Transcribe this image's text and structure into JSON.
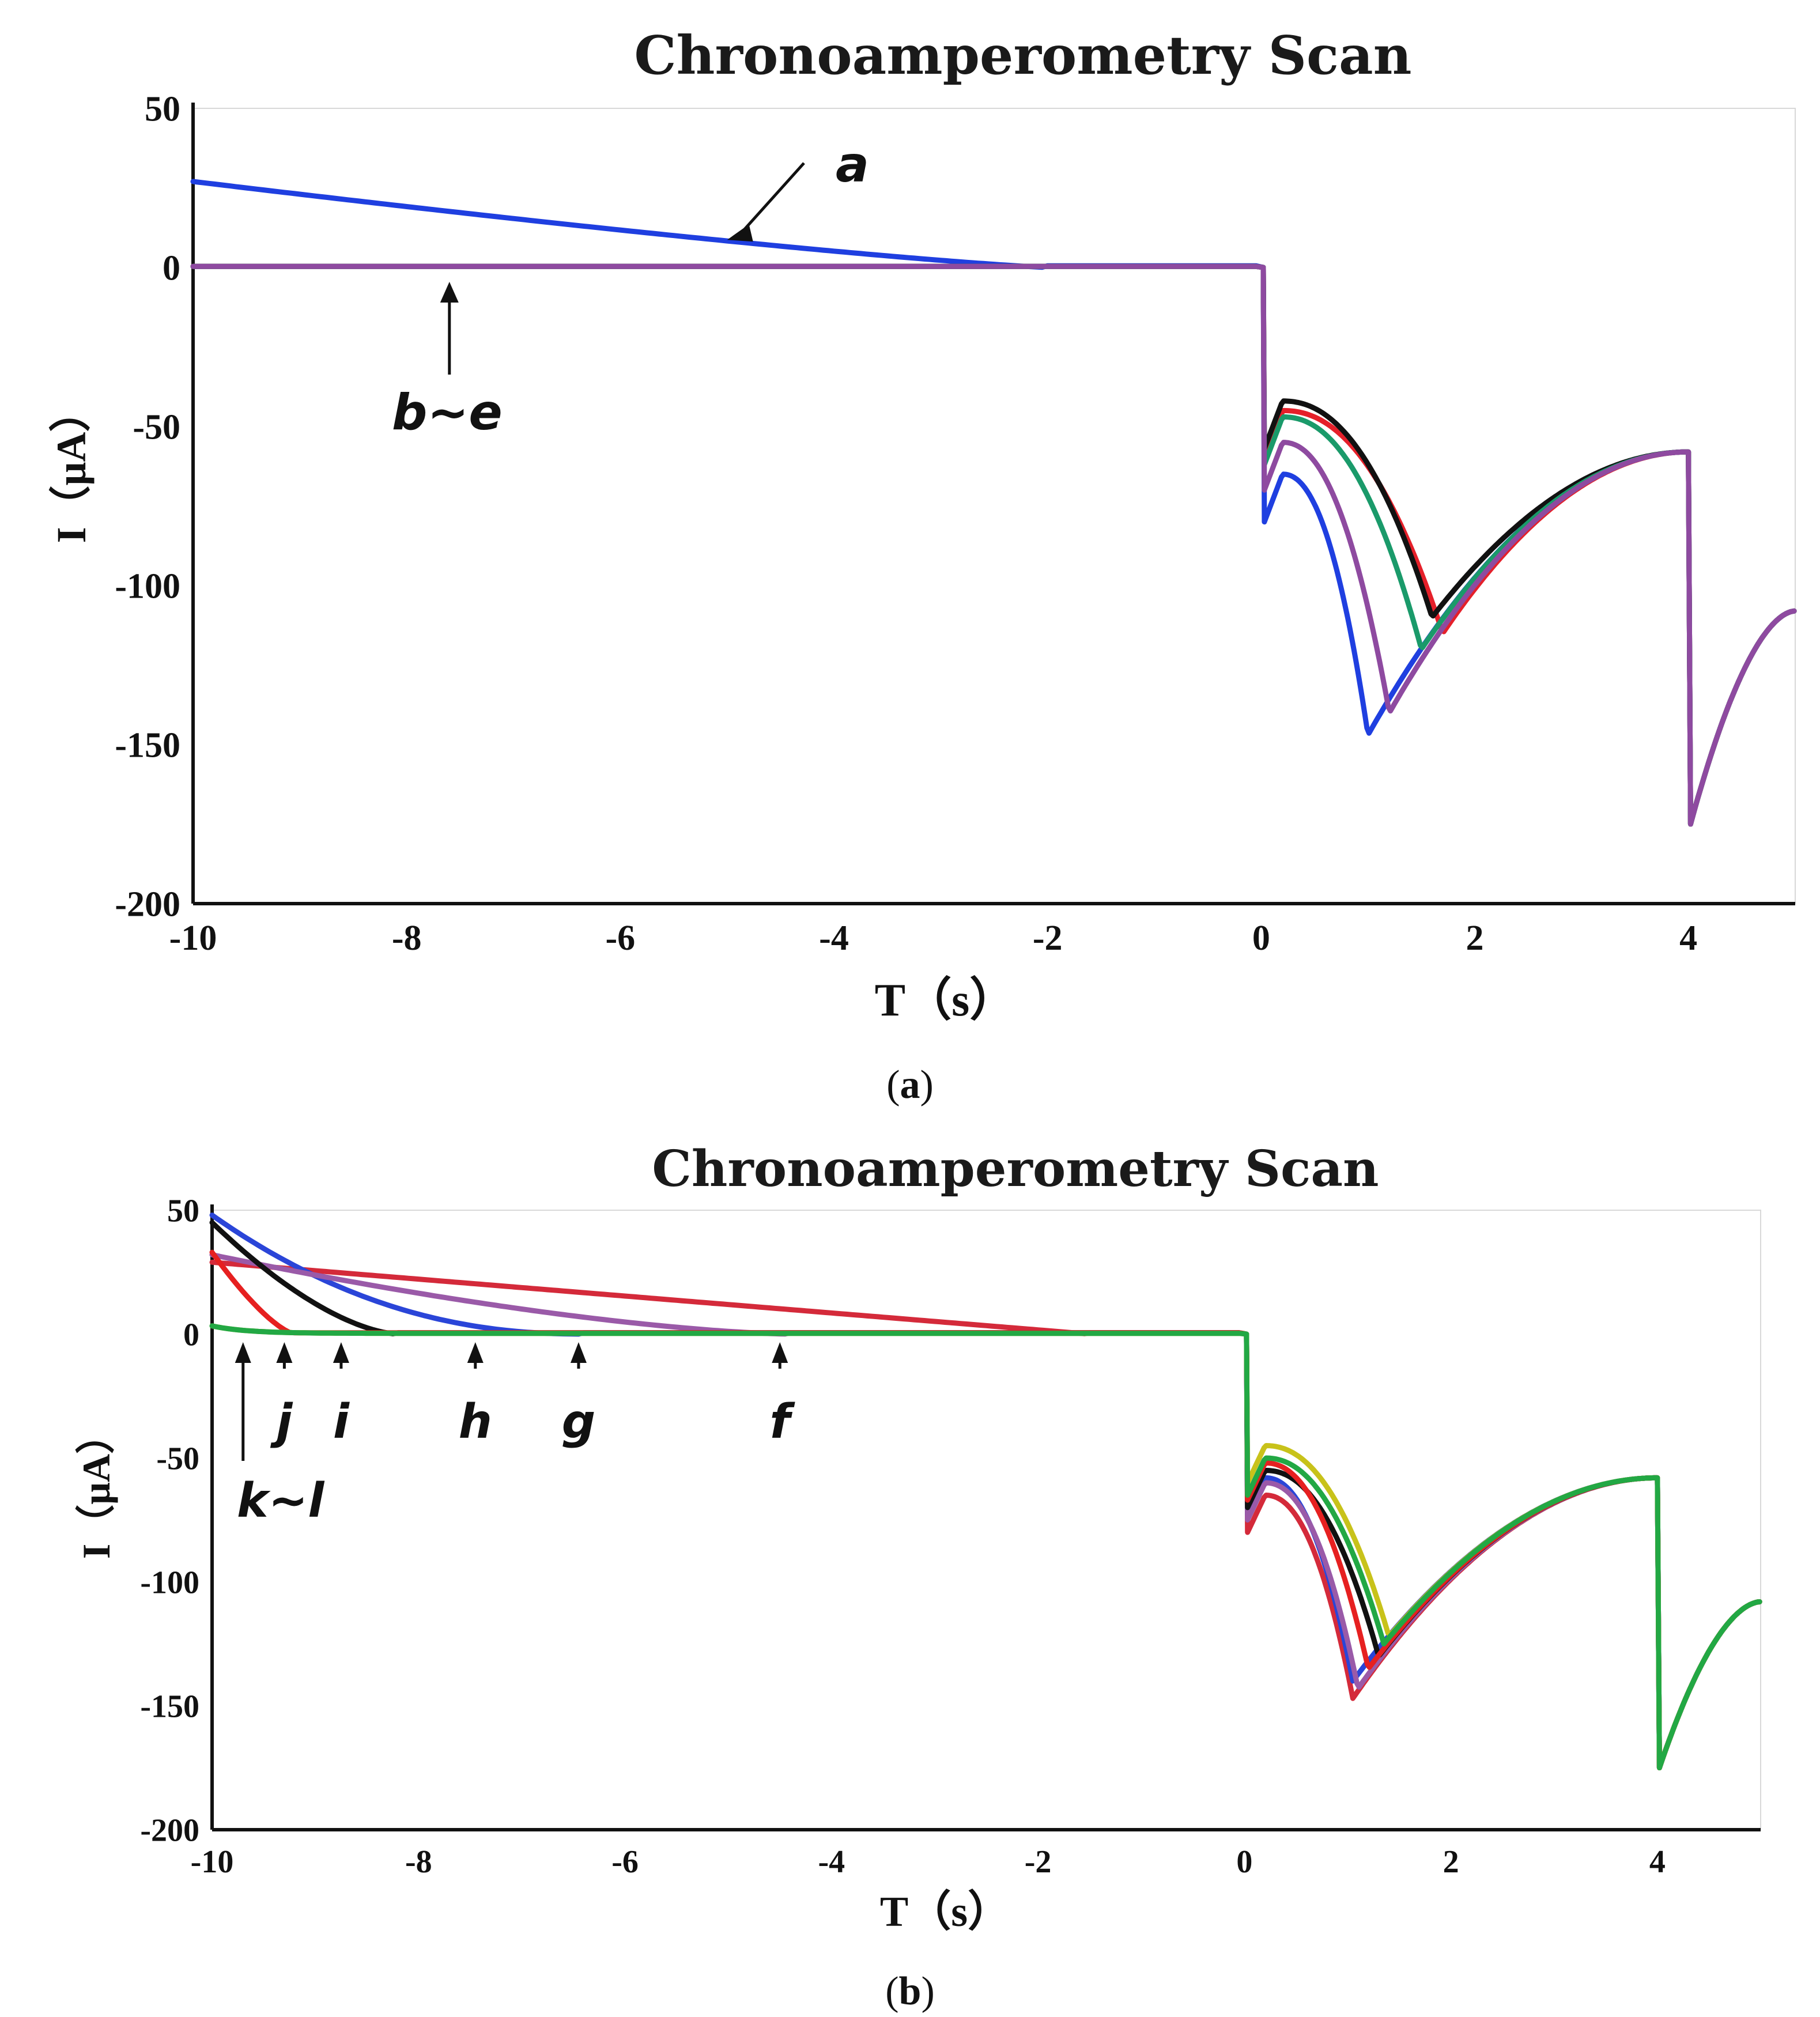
{
  "chart_data": [
    {
      "id": "panel-a",
      "type": "line",
      "title": "Chronoamperometry Scan",
      "xlabel": "T（s）",
      "ylabel": "I（μA）",
      "caption": "a",
      "xlim": [
        -10,
        5
      ],
      "ylim": [
        -200,
        50
      ],
      "xticks": [
        -10,
        -8,
        -6,
        -4,
        -2,
        0,
        2,
        4
      ],
      "yticks": [
        50,
        0,
        -50,
        -100,
        -150,
        -200
      ],
      "series": [
        {
          "name": "a",
          "color": "#1f3fe0",
          "peak_t": 1.0,
          "peak_i": -147,
          "onset_i": -65,
          "start_i": 27,
          "decay_end": -2.0,
          "decay_k": 1.2
        },
        {
          "name": "b~e",
          "color": "#e5202a",
          "peak_t": 1.7,
          "peak_i": -115,
          "onset_i": -45,
          "start_i": 0,
          "decay_end": -1.0,
          "decay_k": 1.0
        },
        {
          "name": "b~e",
          "color": "#111111",
          "peak_t": 1.6,
          "peak_i": -110,
          "onset_i": -42,
          "start_i": 0,
          "decay_end": -1.0,
          "decay_k": 1.0
        },
        {
          "name": "b~e",
          "color": "#1a9a6a",
          "peak_t": 1.5,
          "peak_i": -120,
          "onset_i": -47,
          "start_i": 0,
          "decay_end": -1.0,
          "decay_k": 1.0
        },
        {
          "name": "b~e",
          "color": "#8e4aa0",
          "peak_t": 1.2,
          "peak_i": -140,
          "onset_i": -55,
          "start_i": 0,
          "decay_end": -1.0,
          "decay_k": 1.0
        }
      ],
      "annotations": [
        {
          "label": "a",
          "target_t": -5.0,
          "target_i": 15
        },
        {
          "label": "b~e",
          "target_t": -7.6,
          "target_i": 0
        }
      ]
    },
    {
      "id": "panel-b",
      "type": "line",
      "title": "Chronoamperometry Scan",
      "xlabel": "T（s）",
      "ylabel": "I（μA）",
      "caption": "b",
      "xlim": [
        -10,
        5
      ],
      "ylim": [
        -200,
        50
      ],
      "xticks": [
        -10,
        -8,
        -6,
        -4,
        -2,
        0,
        2,
        4
      ],
      "yticks": [
        50,
        0,
        -50,
        -100,
        -150,
        -200
      ],
      "series": [
        {
          "name": "f",
          "color": "#d42a3a",
          "peak_t": 1.05,
          "peak_i": -147,
          "onset_i": -65,
          "start_i": 29,
          "decay_end": -1.5,
          "decay_k": 1.0
        },
        {
          "name": "g",
          "color": "#2a45d8",
          "peak_t": 1.05,
          "peak_i": -140,
          "onset_i": -58,
          "start_i": 48,
          "decay_end": -6.4,
          "decay_k": 2.2
        },
        {
          "name": "h",
          "color": "#9a5aa8",
          "peak_t": 1.1,
          "peak_i": -143,
          "onset_i": -60,
          "start_i": 32,
          "decay_end": -4.4,
          "decay_k": 1.5
        },
        {
          "name": "i",
          "color": "#111111",
          "peak_t": 1.3,
          "peak_i": -130,
          "onset_i": -55,
          "start_i": 45,
          "decay_end": -8.2,
          "decay_k": 1.6
        },
        {
          "name": "j",
          "color": "#e62020",
          "peak_t": 1.2,
          "peak_i": -135,
          "onset_i": -52,
          "start_i": 33,
          "decay_end": -9.2,
          "decay_k": 1.4
        },
        {
          "name": "k~l",
          "color": "#c8c21a",
          "peak_t": 1.4,
          "peak_i": -122,
          "onset_i": -45,
          "start_i": 3,
          "decay_end": -9.5,
          "decay_k": 1.0
        },
        {
          "name": "k~l",
          "color": "#22a844",
          "peak_t": 1.35,
          "peak_i": -125,
          "onset_i": -50,
          "start_i": 3,
          "decay_end": -9.5,
          "decay_k": 1.0
        }
      ],
      "annotations": [
        {
          "label": "k~l",
          "target_t": -9.7,
          "target_i": 0
        },
        {
          "label": "j",
          "target_t": -9.3,
          "target_i": 0
        },
        {
          "label": "i",
          "target_t": -8.75,
          "target_i": 0
        },
        {
          "label": "h",
          "target_t": -7.45,
          "target_i": 0
        },
        {
          "label": "g",
          "target_t": -6.45,
          "target_i": 0
        },
        {
          "label": "f",
          "target_t": -4.5,
          "target_i": 0
        }
      ]
    }
  ]
}
